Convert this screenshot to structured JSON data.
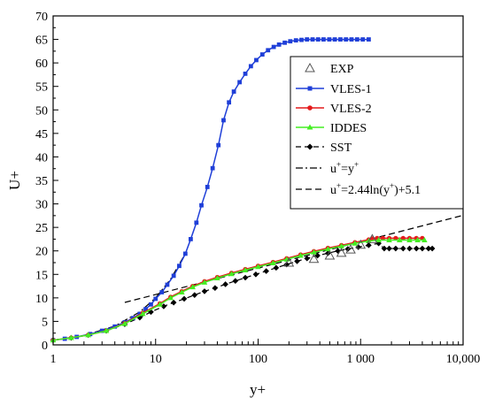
{
  "chart_data": {
    "type": "line",
    "xlabel": "y+",
    "ylabel": "U+",
    "xscale": "log",
    "xlim": [
      1,
      10000
    ],
    "ylim": [
      0,
      70
    ],
    "legend_position": "top-right",
    "x_tick_labels": [
      "1",
      "10",
      "100",
      "1 000",
      "10,000"
    ],
    "x_tick_values": [
      1,
      10,
      100,
      1000,
      10000
    ],
    "y_ticks": [
      0,
      5,
      10,
      15,
      20,
      25,
      30,
      35,
      40,
      45,
      50,
      55,
      60,
      65,
      70
    ],
    "legend": {
      "exp": "EXP",
      "vles1": "VLES-1",
      "vles2": "VLES-2",
      "iddes": "IDDES",
      "sst": "SST",
      "lin_prefix": "u",
      "lin_mid": "=y",
      "log_prefix": "u",
      "log_mid": "=2.44ln(y",
      "log_suffix": ")+5.1",
      "sup": "+"
    },
    "series": [
      {
        "name": "EXP",
        "color": "#555555",
        "marker": "triangle-open",
        "x": [
          200,
          350,
          500,
          650,
          800,
          1000,
          1300
        ],
        "y": [
          17.5,
          18.3,
          19.0,
          19.6,
          20.3,
          21.3,
          22.5
        ]
      },
      {
        "name": "VLES-1",
        "color": "#1f3fd8",
        "marker": "square",
        "x": [
          1,
          1.3,
          1.7,
          2.3,
          3,
          4,
          5,
          6,
          7,
          8,
          9,
          10,
          11.5,
          13,
          15,
          17,
          19.5,
          22,
          25,
          28,
          32,
          36,
          41,
          46,
          52,
          58,
          66,
          75,
          85,
          96,
          110,
          125,
          142,
          160,
          182,
          206,
          234,
          265,
          300,
          340,
          385,
          435,
          495,
          560,
          635,
          720,
          815,
          925,
          1050,
          1200
        ],
        "y": [
          1.0,
          1.3,
          1.7,
          2.3,
          3.0,
          3.9,
          4.8,
          5.7,
          6.6,
          7.6,
          8.6,
          9.8,
          11.2,
          12.8,
          14.7,
          16.8,
          19.4,
          22.5,
          26.0,
          29.7,
          33.6,
          37.6,
          42.5,
          47.8,
          51.6,
          53.9,
          55.9,
          57.7,
          59.3,
          60.6,
          61.8,
          62.7,
          63.4,
          63.9,
          64.3,
          64.6,
          64.8,
          64.9,
          65.0,
          65.0,
          65.0,
          65.0,
          65.0,
          65.0,
          65.0,
          65.0,
          65.0,
          65.0,
          65.0,
          65.0
        ]
      },
      {
        "name": "VLES-2",
        "color": "#e41a1c",
        "marker": "circle",
        "x": [
          1,
          1.5,
          2.2,
          3.3,
          5,
          7.5,
          11,
          14,
          18,
          23,
          30,
          40,
          55,
          75,
          100,
          140,
          190,
          260,
          350,
          480,
          650,
          880,
          1200,
          1300,
          1450,
          1650,
          1900,
          2200,
          2600,
          3000,
          3500,
          4000
        ],
        "y": [
          1.0,
          1.5,
          2.1,
          3.0,
          4.6,
          6.8,
          8.8,
          10.2,
          11.4,
          12.5,
          13.5,
          14.4,
          15.3,
          16.1,
          16.8,
          17.6,
          18.4,
          19.2,
          19.9,
          20.6,
          21.2,
          21.8,
          22.4,
          22.6,
          22.7,
          22.7,
          22.7,
          22.7,
          22.7,
          22.7,
          22.7,
          22.7
        ]
      },
      {
        "name": "IDDES",
        "color": "#44ee22",
        "marker": "triangle",
        "x": [
          1,
          1.5,
          2.2,
          3.3,
          5,
          7.5,
          11,
          14,
          18,
          23,
          30,
          40,
          55,
          75,
          100,
          140,
          190,
          260,
          350,
          480,
          650,
          880,
          1200,
          1500,
          1900,
          2400,
          3000,
          3600,
          4200
        ],
        "y": [
          1.0,
          1.5,
          2.1,
          3.0,
          4.5,
          6.6,
          8.6,
          10.0,
          11.2,
          12.3,
          13.3,
          14.2,
          15.1,
          15.9,
          16.6,
          17.4,
          18.2,
          19.0,
          19.7,
          20.4,
          21.0,
          21.6,
          22.1,
          22.3,
          22.3,
          22.3,
          22.3,
          22.3,
          22.3
        ]
      },
      {
        "name": "SST",
        "color": "#000000",
        "marker": "diamond",
        "dash": "6,4",
        "x": [
          1,
          1.5,
          2.2,
          3.3,
          5,
          7,
          9,
          12,
          15,
          19,
          24,
          30,
          38,
          48,
          60,
          75,
          95,
          120,
          150,
          190,
          240,
          300,
          380,
          480,
          600,
          750,
          950,
          1200,
          1500,
          1700,
          1900,
          2200,
          2600,
          3000,
          3500,
          4000,
          4600,
          5000
        ],
        "y": [
          1.0,
          1.5,
          2.1,
          3.0,
          4.4,
          5.8,
          7.0,
          8.2,
          9.0,
          9.8,
          10.6,
          11.4,
          12.1,
          12.9,
          13.6,
          14.3,
          15.0,
          15.7,
          16.4,
          17.1,
          17.8,
          18.4,
          19.0,
          19.5,
          20.0,
          20.4,
          20.8,
          21.2,
          21.6,
          20.5,
          20.5,
          20.5,
          20.5,
          20.5,
          20.5,
          20.5,
          20.5,
          20.5
        ]
      },
      {
        "name": "u+=y+",
        "color": "#000000",
        "dash": "8,3,2,3",
        "x": [
          1,
          2,
          4,
          7,
          10,
          14,
          19
        ],
        "y": [
          1,
          2,
          4,
          7,
          10,
          14,
          19
        ]
      },
      {
        "name": "u+=2.44ln(y+)+5.1",
        "color": "#000000",
        "dash": "7,4",
        "x": [
          5,
          10,
          100,
          1000,
          10000
        ],
        "y": [
          9.03,
          10.72,
          16.34,
          21.95,
          27.57
        ]
      }
    ]
  }
}
